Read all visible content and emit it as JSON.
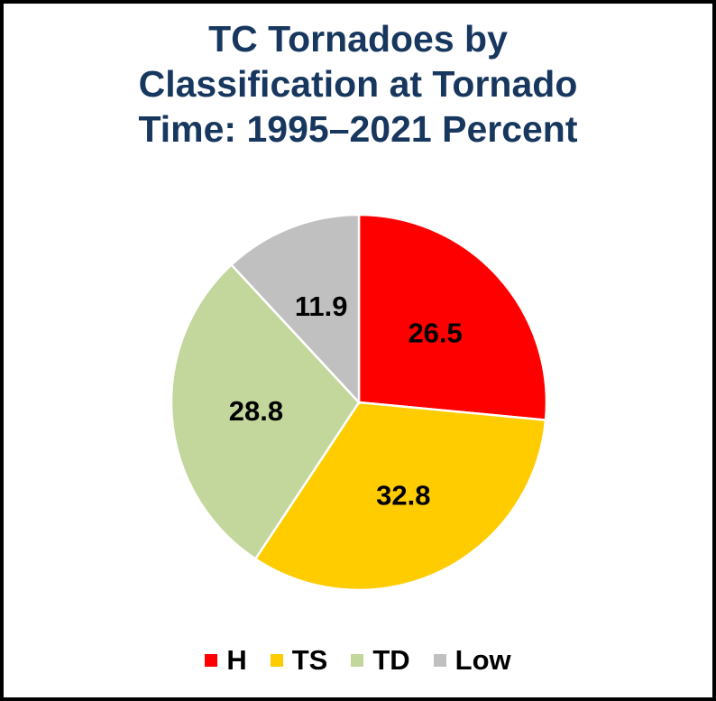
{
  "chart_data": {
    "type": "pie",
    "title_lines": [
      "TC Tornadoes by",
      "Classification at Tornado",
      "Time: 1995–2021 Percent"
    ],
    "categories": [
      "H",
      "TS",
      "TD",
      "Low"
    ],
    "values": [
      26.5,
      32.8,
      28.8,
      11.9
    ],
    "data_labels": [
      "26.5",
      "32.8",
      "28.8",
      "11.9"
    ],
    "colors": [
      "#ff0000",
      "#ffcc00",
      "#c3d69b",
      "#c0c0c0"
    ],
    "start_angle": "12 o'clock",
    "direction": "clockwise",
    "legend_position": "bottom"
  },
  "colors": {
    "title": "#17375e",
    "border": "#000000",
    "label": "#000000"
  }
}
